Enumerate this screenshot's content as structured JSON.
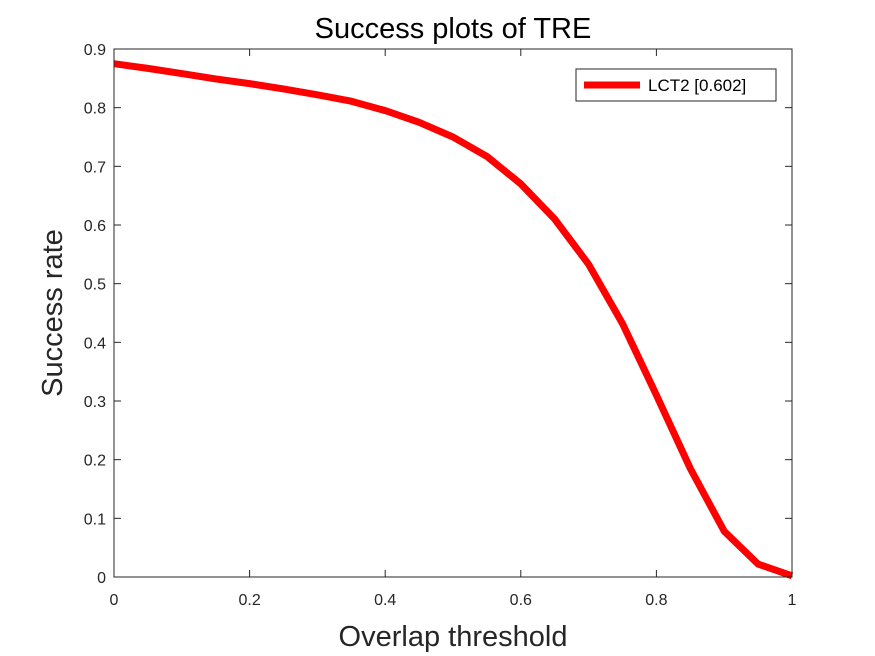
{
  "chart_data": {
    "type": "line",
    "title": "Success plots of TRE",
    "xlabel": "Overlap threshold",
    "ylabel": "Success rate",
    "xlim": [
      0,
      1
    ],
    "ylim": [
      0,
      0.9
    ],
    "xticks": [
      "0",
      "0.2",
      "0.4",
      "0.6",
      "0.8",
      "1"
    ],
    "yticks": [
      "0",
      "0.1",
      "0.2",
      "0.3",
      "0.4",
      "0.5",
      "0.6",
      "0.7",
      "0.8",
      "0.9"
    ],
    "grid": false,
    "legend_position": "top-right",
    "series": [
      {
        "name": "LCT2 [0.602]",
        "color": "#ff0000",
        "x": [
          0,
          0.05,
          0.1,
          0.15,
          0.2,
          0.25,
          0.3,
          0.35,
          0.4,
          0.45,
          0.5,
          0.55,
          0.6,
          0.65,
          0.7,
          0.75,
          0.8,
          0.85,
          0.9,
          0.95,
          1
        ],
        "y": [
          0.875,
          0.867,
          0.858,
          0.849,
          0.841,
          0.832,
          0.822,
          0.811,
          0.795,
          0.775,
          0.75,
          0.717,
          0.67,
          0.61,
          0.533,
          0.432,
          0.31,
          0.185,
          0.078,
          0.022,
          0.002
        ]
      }
    ]
  }
}
